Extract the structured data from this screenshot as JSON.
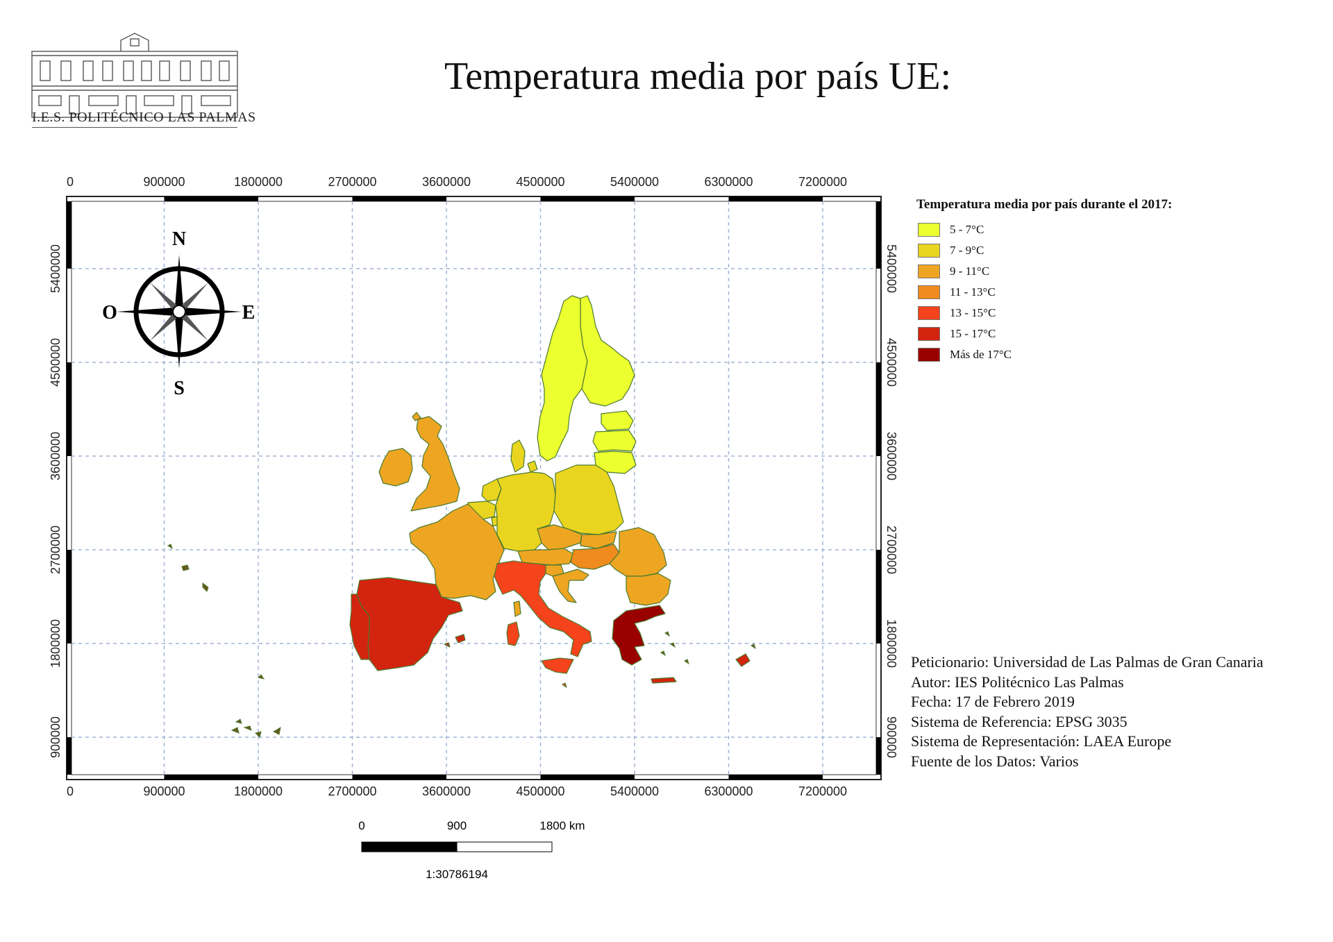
{
  "header": {
    "title": "Temperatura media por país UE:",
    "logo_text": "I.E.S. POLITÉCNICO LAS PALMAS"
  },
  "map": {
    "grid_x_labels": [
      "0",
      "900000",
      "1800000",
      "2700000",
      "3600000",
      "4500000",
      "5400000",
      "6300000",
      "7200000"
    ],
    "grid_y_labels": [
      "900000",
      "1800000",
      "2700000",
      "3600000",
      "4500000",
      "5400000"
    ],
    "north_arrow": {
      "n": "N",
      "s": "S",
      "e": "E",
      "w": "O"
    },
    "colors": {
      "c5_7": "#ecff2f",
      "c7_9": "#e9d51f",
      "c9_11": "#eea622",
      "c11_13": "#f08b1d",
      "c13_15": "#f5431b",
      "c15_17": "#d3240f",
      "c17": "#9b0000",
      "border": "#4b7a2e"
    }
  },
  "legend": {
    "title": "Temperatura media por país durante el 2017:",
    "items": [
      {
        "label": "5 - 7°C",
        "color": "#ecff2f"
      },
      {
        "label": "7 - 9°C",
        "color": "#e9d51f"
      },
      {
        "label": "9 - 11°C",
        "color": "#eea622"
      },
      {
        "label": "11 - 13°C",
        "color": "#f08b1d"
      },
      {
        "label": "13 - 15°C",
        "color": "#f5431b"
      },
      {
        "label": "15 - 17°C",
        "color": "#d3240f"
      },
      {
        "label": "Más de 17°C",
        "color": "#9b0000"
      }
    ]
  },
  "metadata": {
    "peticionario": "Peticionario: Universidad de Las Palmas de Gran Canaria",
    "autor": "Autor: IES Politécnico Las Palmas",
    "fecha": "Fecha: 17 de Febrero 2019",
    "sistema_referencia": "Sistema de Referencia: EPSG 3035",
    "sistema_representacion": "Sistema de Representación: LAEA Europe",
    "fuente": "Fuente de los Datos: Varios"
  },
  "scalebar": {
    "labels": [
      "0",
      "900",
      "1800 km"
    ],
    "ratio": "1:30786194"
  }
}
